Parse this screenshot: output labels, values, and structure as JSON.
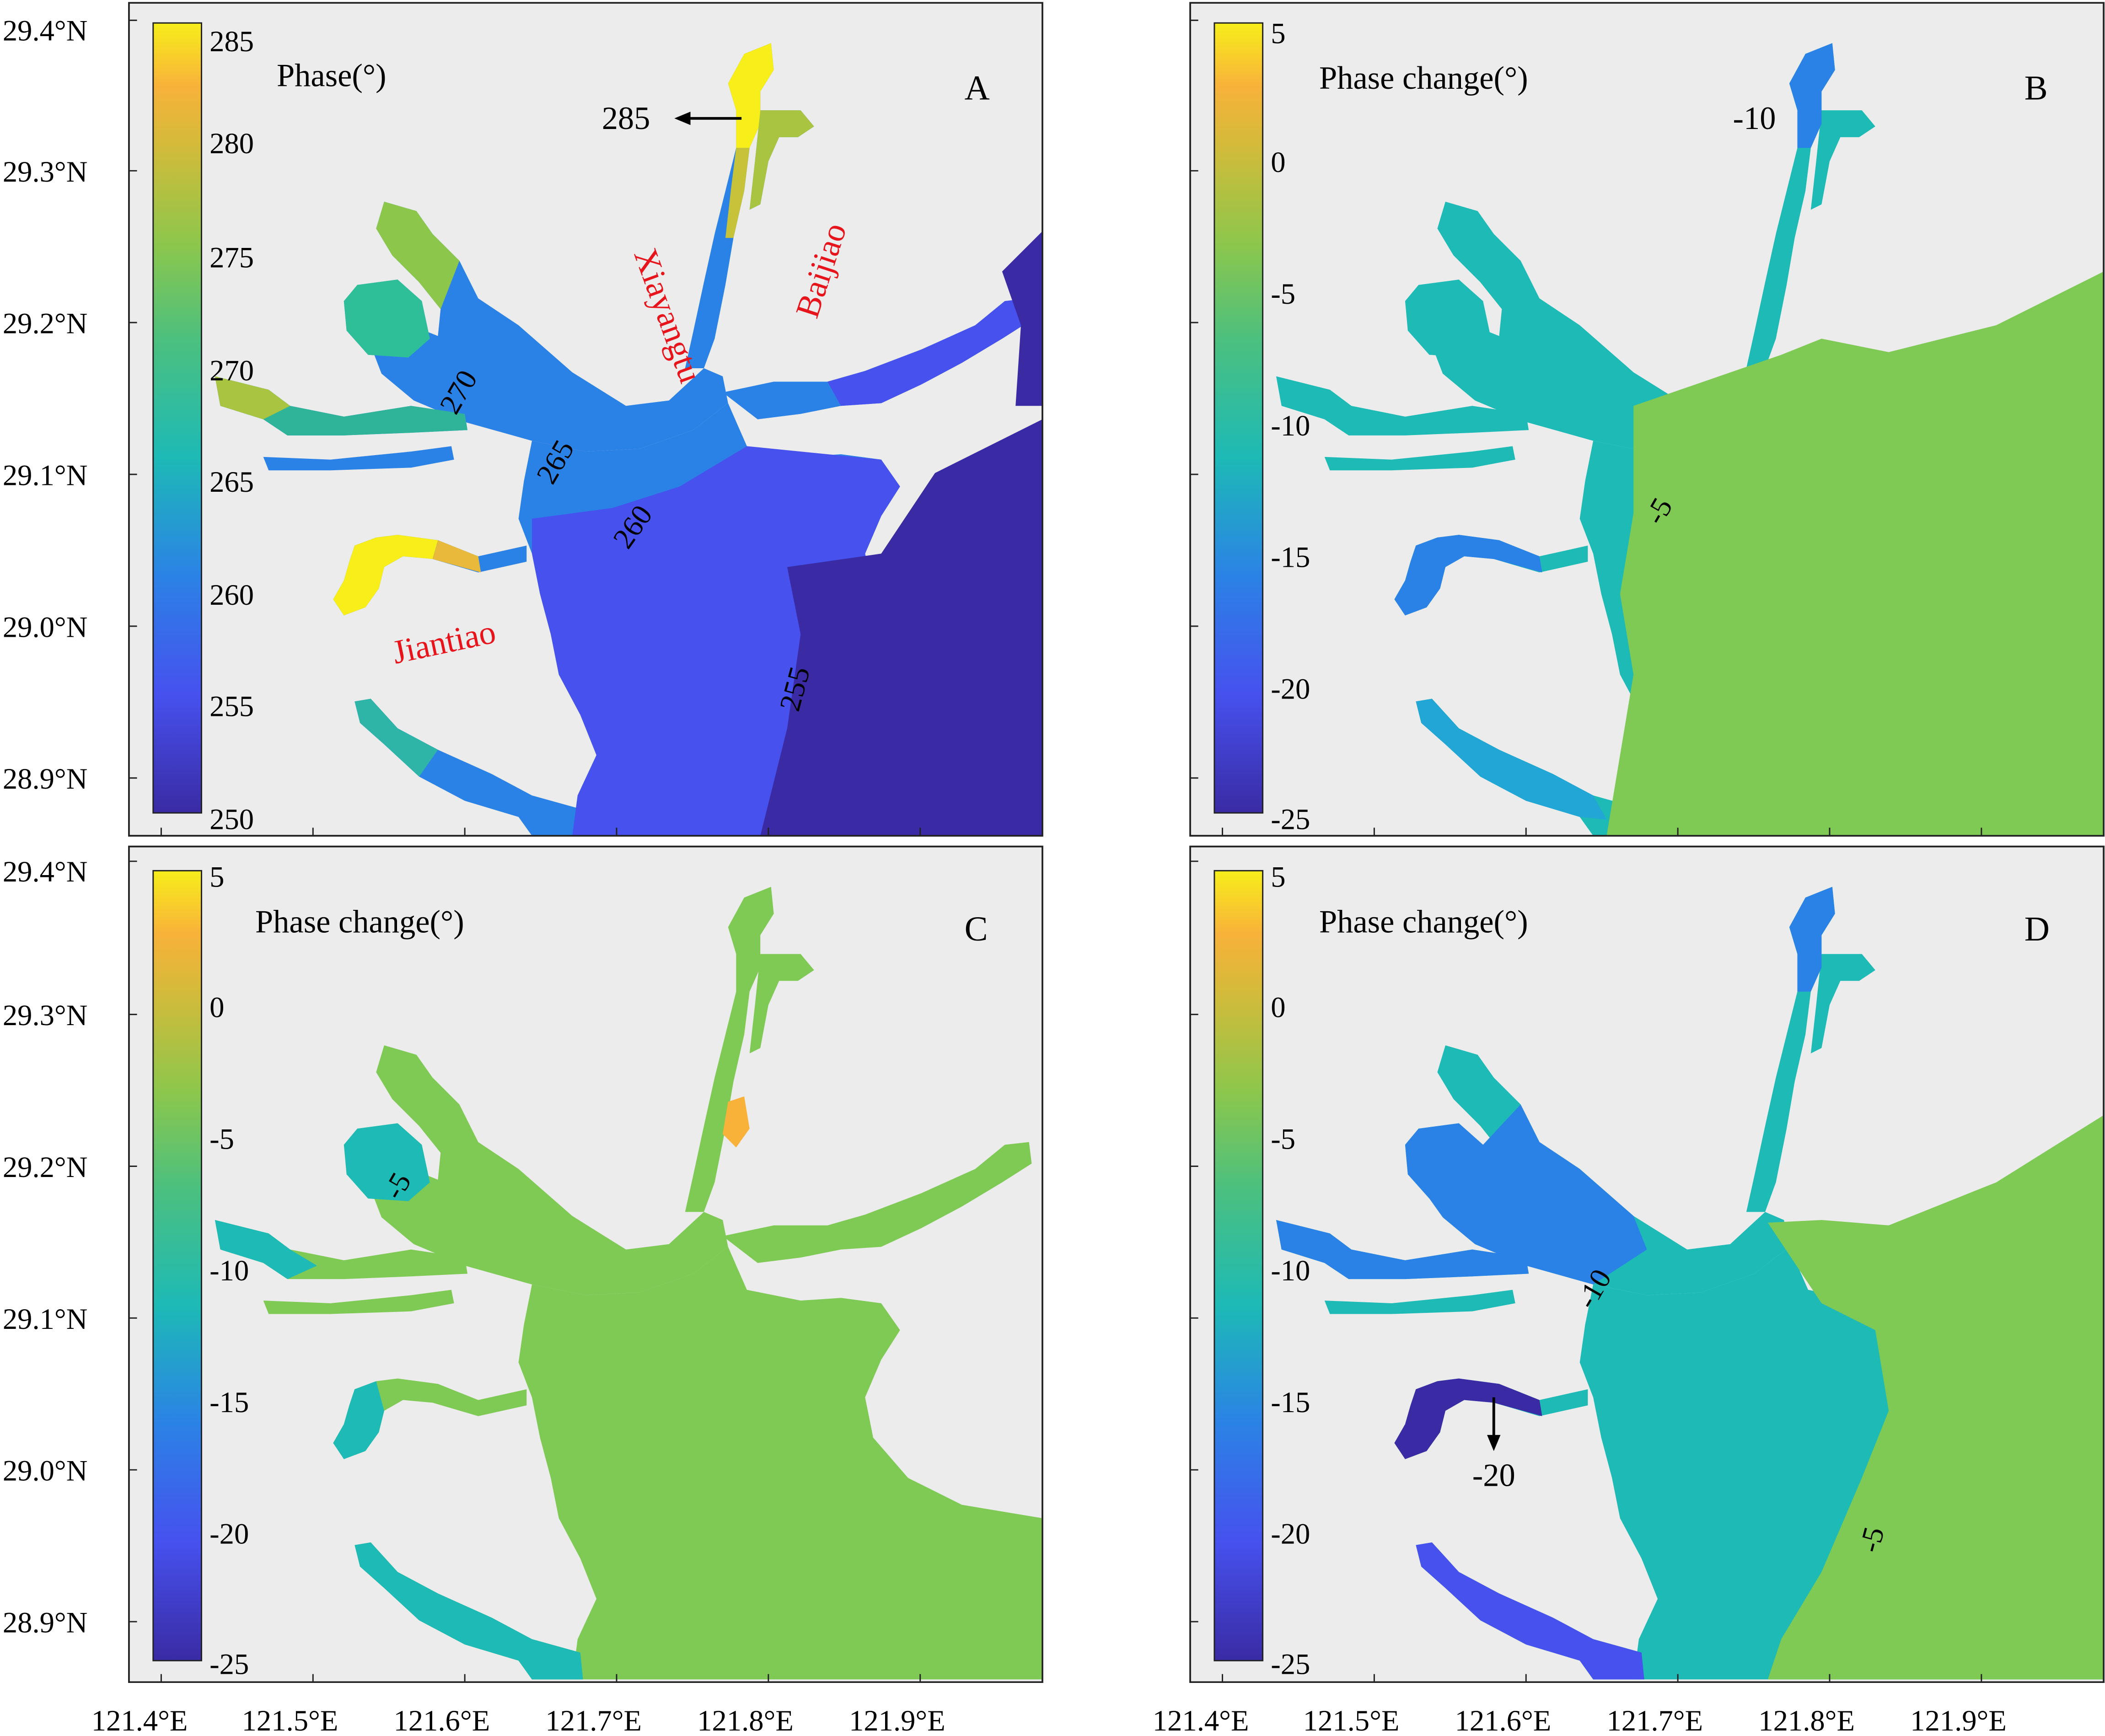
{
  "axes": {
    "x_ticks": [
      "121.4°E",
      "121.5°E",
      "121.6°E",
      "121.7°E",
      "121.8°E",
      "121.9°E"
    ],
    "y_ticks": [
      "28.9°N",
      "29.0°N",
      "29.1°N",
      "29.2°N",
      "29.3°N",
      "29.4°N"
    ]
  },
  "colors": {
    "land": "#ececec",
    "green": "#7fc955",
    "teal": "#1dbab6",
    "cyan_blue": "#21a6d6",
    "blue": "#2b82e6",
    "blue_violet": "#4651ee",
    "deep_violet": "#3a2ba4",
    "yellow": "#f7ee1a",
    "orange": "#f8b23a",
    "red_label": "#e8141c"
  },
  "panels": [
    {
      "id": "A",
      "letter": "A",
      "colorbar": {
        "label": "Phase(°)",
        "ticks": [
          "285",
          "280",
          "275",
          "270",
          "265",
          "260",
          "255",
          "250"
        ]
      },
      "contour_labels": [
        "285",
        "270",
        "265",
        "260",
        "255"
      ],
      "place_labels": [
        "Xiayangtu",
        "Baijiao",
        "Jiantiao"
      ]
    },
    {
      "id": "B",
      "letter": "B",
      "colorbar": {
        "label": "Phase change(°)",
        "ticks": [
          "5",
          "0",
          "-5",
          "-10",
          "-15",
          "-20",
          "-25"
        ]
      },
      "contour_labels": [
        "-10",
        "-5"
      ]
    },
    {
      "id": "C",
      "letter": "C",
      "colorbar": {
        "label": "Phase change(°)",
        "ticks": [
          "5",
          "0",
          "-5",
          "-10",
          "-15",
          "-20",
          "-25"
        ]
      },
      "contour_labels": [
        "-5"
      ]
    },
    {
      "id": "D",
      "letter": "D",
      "colorbar": {
        "label": "Phase change(°)",
        "ticks": [
          "5",
          "0",
          "-5",
          "-10",
          "-15",
          "-20",
          "-25"
        ]
      },
      "contour_labels": [
        "-10",
        "-20",
        "-5"
      ]
    }
  ]
}
